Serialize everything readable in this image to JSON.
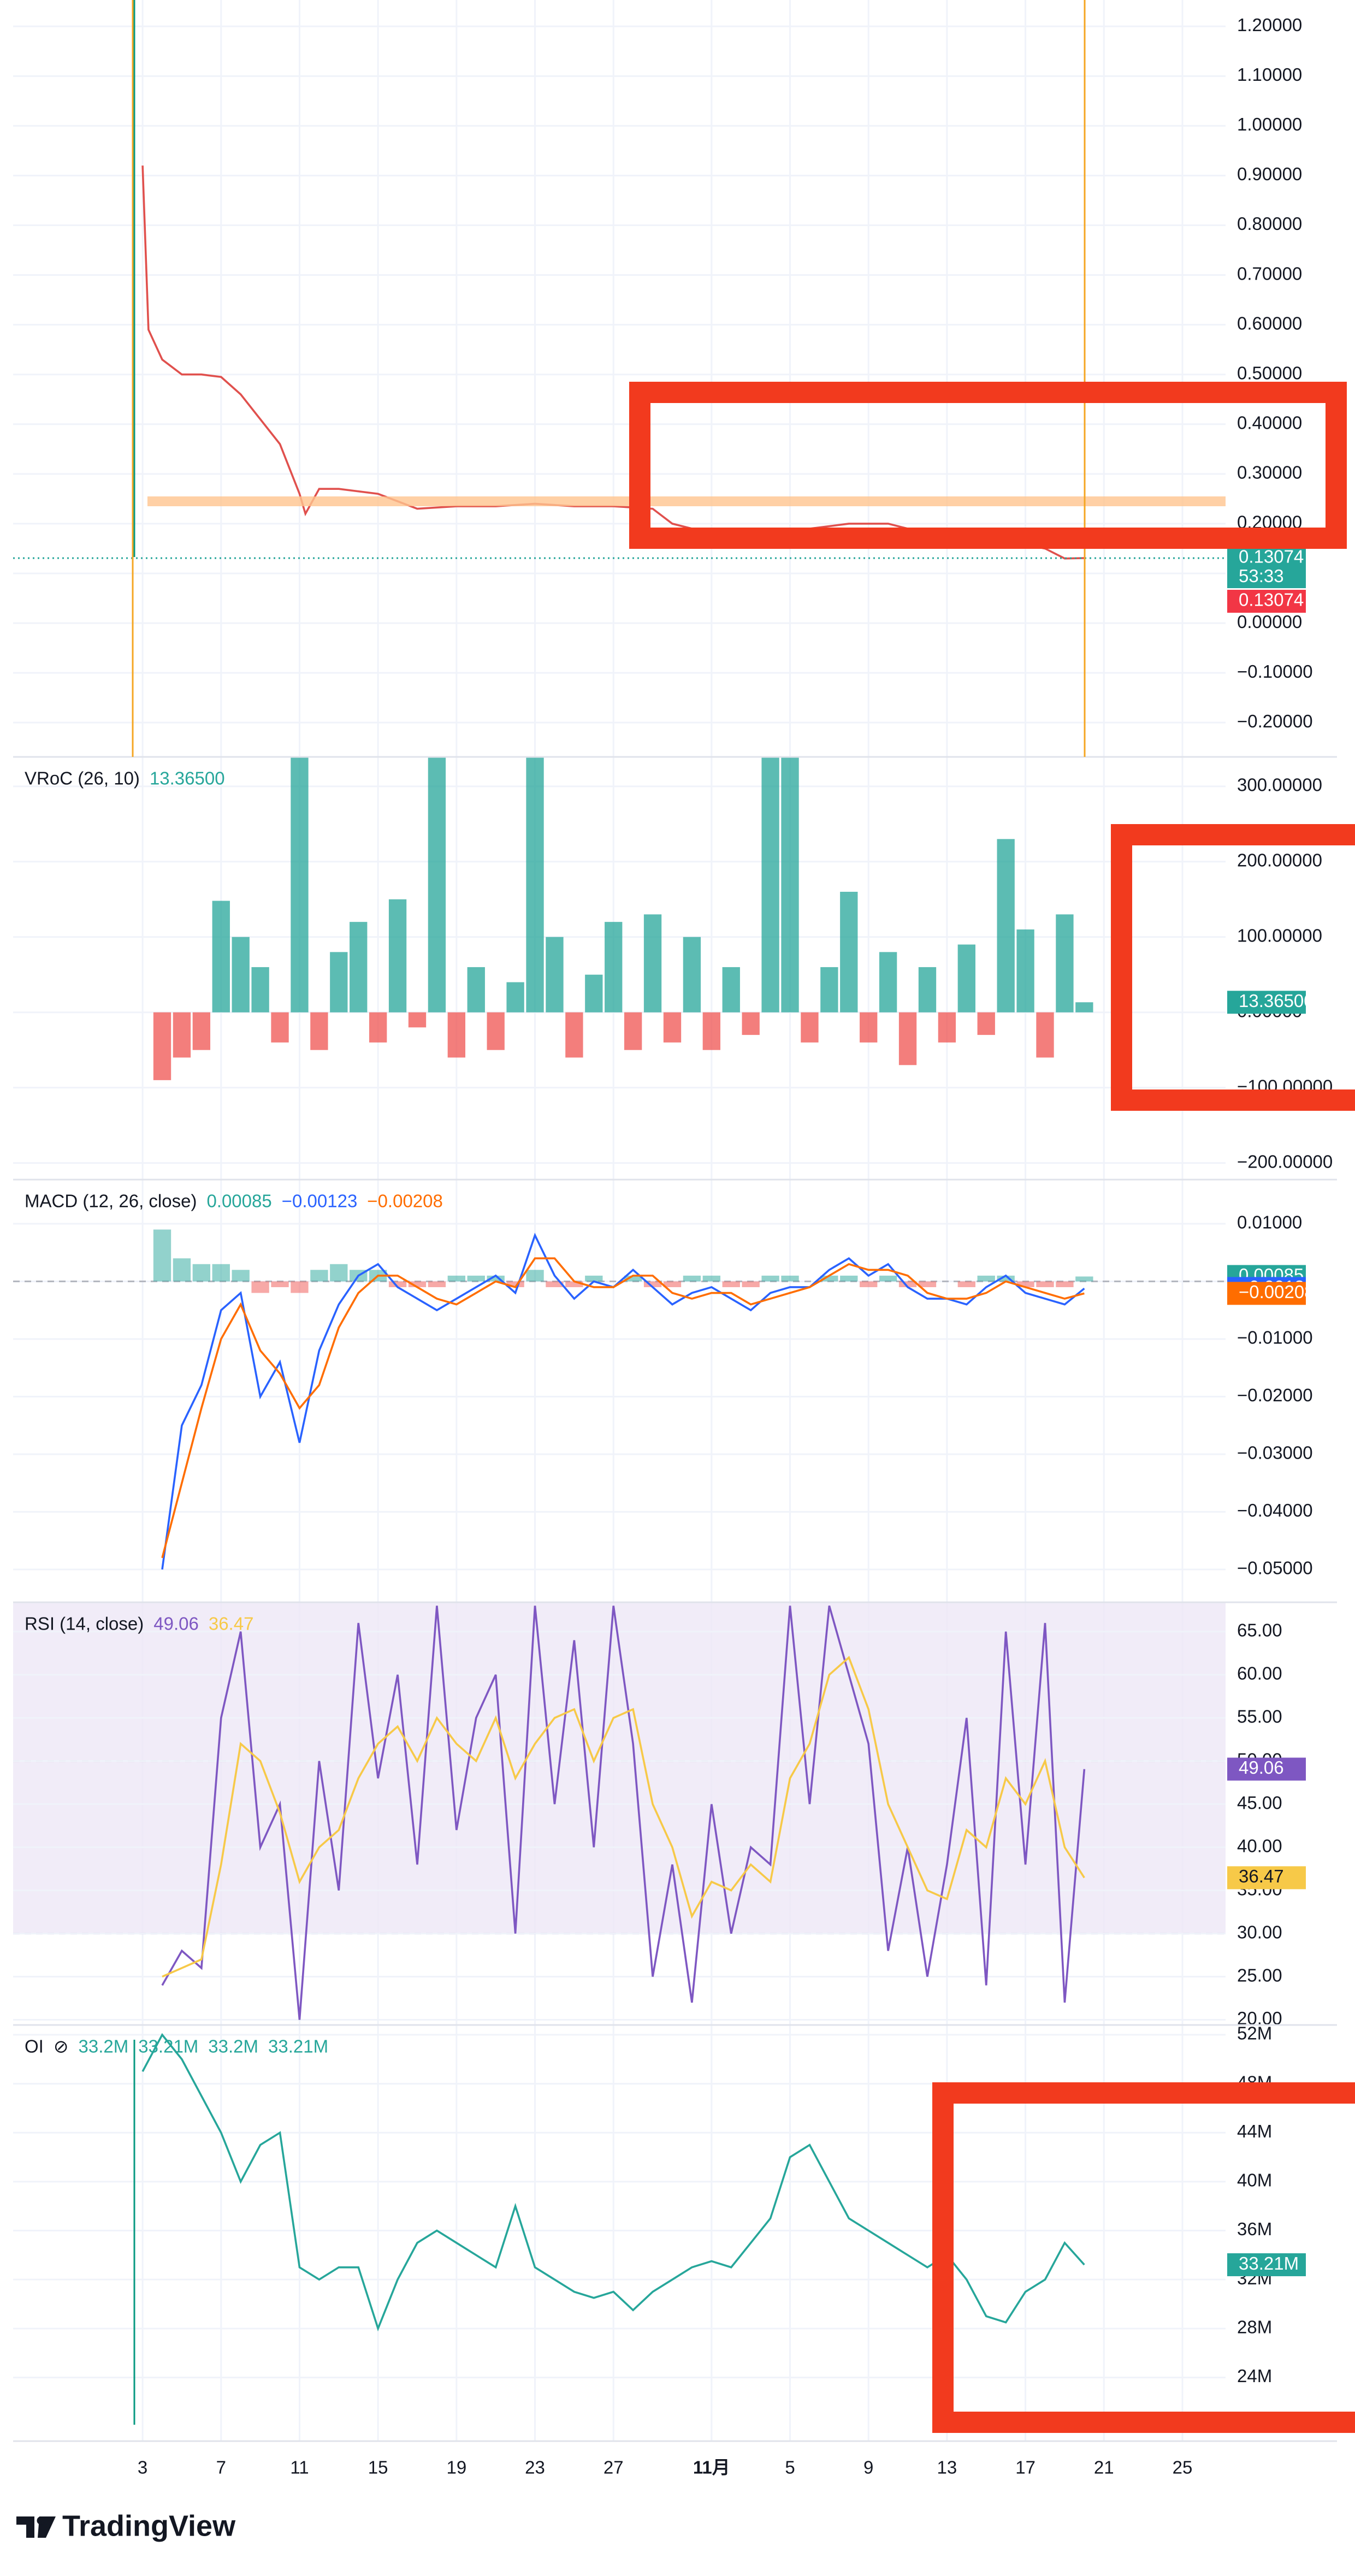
{
  "chart_data": [
    {
      "type": "line",
      "x": [
        0,
        0.3,
        1,
        2,
        3,
        4,
        5,
        6,
        7,
        8,
        8.3,
        9,
        10,
        12,
        14,
        16,
        18,
        20,
        22,
        24,
        26,
        27,
        28,
        30,
        32,
        34,
        36,
        38,
        40,
        42,
        44,
        46,
        47,
        48
      ],
      "series": [
        {
          "color": "#e0504d",
          "tag_color": "#26a69a",
          "last_label": "0.13074",
          "values": [
            0.92,
            0.59,
            0.53,
            0.5,
            0.5,
            0.495,
            0.46,
            0.41,
            0.36,
            0.26,
            0.22,
            0.27,
            0.27,
            0.26,
            0.23,
            0.235,
            0.235,
            0.24,
            0.235,
            0.235,
            0.23,
            0.2,
            0.19,
            0.19,
            0.19,
            0.19,
            0.2,
            0.2,
            0.18,
            0.165,
            0.165,
            0.15,
            0.13,
            0.13074
          ]
        }
      ],
      "last_line": true,
      "tags": [
        "53:33",
        "0.13074"
      ],
      "xlim": [
        -6.6,
        55.2
      ],
      "ylim": [
        -0.269,
        1.253
      ],
      "yticks": [
        {
          "value": 1.2,
          "label": "1.20000"
        },
        {
          "value": 1.1,
          "label": "1.10000"
        },
        {
          "value": 1,
          "label": "1.00000"
        },
        {
          "value": 0.9,
          "label": "0.90000"
        },
        {
          "value": 0.8,
          "label": "0.80000"
        },
        {
          "value": 0.7,
          "label": "0.70000"
        },
        {
          "value": 0.6,
          "label": "0.60000"
        },
        {
          "value": 0.5,
          "label": "0.50000"
        },
        {
          "value": 0.4,
          "label": "0.40000"
        },
        {
          "value": 0.3,
          "label": "0.30000"
        },
        {
          "value": 0.2,
          "label": "0.20000"
        },
        {
          "value": 0.1,
          "label": "0.10000"
        },
        {
          "value": 0,
          "label": "0.00000"
        },
        {
          "value": -0.1,
          "label": "−0.10000"
        },
        {
          "value": -0.2,
          "label": "−0.20000"
        }
      ]
    },
    {
      "type": "bar",
      "title": "VRoC (26, 10)",
      "x": [
        1,
        2,
        3,
        4,
        5,
        6,
        7,
        8,
        9,
        10,
        11,
        12,
        13,
        14,
        15,
        16,
        17,
        18,
        19,
        20,
        21,
        22,
        23,
        24,
        25,
        26,
        27,
        28,
        29,
        30,
        31,
        32,
        33,
        34,
        35,
        36,
        37,
        38,
        39,
        40,
        41,
        42,
        43,
        44,
        45,
        46,
        47,
        48
      ],
      "series": [
        {
          "color": "#26a69a",
          "negative_color": "#ef5350",
          "last_label": "13.36500",
          "values": [
            -90,
            -60,
            -50,
            148,
            100,
            60,
            -40,
            340,
            -50,
            80,
            120,
            -40,
            150,
            -20,
            340,
            -60,
            60,
            -50,
            40,
            340,
            100,
            -60,
            50,
            120,
            -50,
            130,
            -40,
            100,
            -50,
            60,
            -30,
            340,
            340,
            -40,
            60,
            160,
            -40,
            80,
            -70,
            60,
            -40,
            90,
            -30,
            230,
            110,
            -60,
            130,
            13.365
          ]
        }
      ],
      "xlim": [
        -6.6,
        55.2
      ],
      "ylim": [
        -222,
        339
      ],
      "yticks": [
        {
          "value": 300,
          "label": "300.00000"
        },
        {
          "value": 200,
          "label": "200.00000"
        },
        {
          "value": 100,
          "label": "100.00000"
        },
        {
          "value": 0,
          "label": "0.00000"
        },
        {
          "value": -100,
          "label": "−100.00000"
        },
        {
          "value": -200,
          "label": "−200.00000"
        }
      ]
    },
    {
      "type": "line",
      "title": "MACD (12, 26, close)",
      "zero_line": true,
      "x": [
        1,
        2,
        3,
        4,
        5,
        6,
        7,
        8,
        9,
        10,
        11,
        12,
        13,
        14,
        15,
        16,
        17,
        18,
        19,
        20,
        21,
        22,
        23,
        24,
        25,
        26,
        27,
        28,
        29,
        30,
        31,
        32,
        33,
        34,
        35,
        36,
        37,
        38,
        39,
        40,
        41,
        42,
        43,
        44,
        45,
        46,
        47,
        48
      ],
      "series": [
        {
          "style": "histogram",
          "color": "#26a69a",
          "negative_color": "#ef5350",
          "last_label": "0.00085",
          "values": [
            0.009,
            0.004,
            0.003,
            0.003,
            0.002,
            -0.002,
            -0.001,
            -0.002,
            0.002,
            0.003,
            0.002,
            0.002,
            -0.001,
            -0.001,
            -0.001,
            0.001,
            0.001,
            0.001,
            -0.001,
            0.002,
            -0.001,
            -0.001,
            0.001,
            0,
            0.001,
            -0.001,
            -0.001,
            0.001,
            0.001,
            -0.001,
            -0.001,
            0.001,
            0.001,
            0,
            0.001,
            0.001,
            -0.001,
            0.001,
            -0.001,
            -0.001,
            0,
            -0.001,
            0.001,
            0.001,
            -0.001,
            -0.001,
            -0.001,
            0.00085
          ]
        },
        {
          "color": "#2962ff",
          "last_label": "−0.00123",
          "values": [
            -0.05,
            -0.025,
            -0.018,
            -0.005,
            -0.002,
            -0.02,
            -0.014,
            -0.028,
            -0.012,
            -0.004,
            0.001,
            0.003,
            -0.001,
            -0.003,
            -0.005,
            -0.003,
            -0.001,
            0.001,
            -0.002,
            0.008,
            0.001,
            -0.003,
            0,
            -0.001,
            0.002,
            -0.001,
            -0.004,
            -0.002,
            -0.001,
            -0.003,
            -0.005,
            -0.002,
            -0.001,
            -0.001,
            0.002,
            0.004,
            0.001,
            0.003,
            -0.001,
            -0.003,
            -0.003,
            -0.004,
            -0.001,
            0.001,
            -0.002,
            -0.003,
            -0.004,
            -0.00123
          ]
        },
        {
          "color": "#ff6d00",
          "last_label": "−0.00208",
          "values": [
            -0.048,
            -0.035,
            -0.022,
            -0.01,
            -0.004,
            -0.012,
            -0.016,
            -0.022,
            -0.018,
            -0.008,
            -0.002,
            0.001,
            0.001,
            -0.001,
            -0.003,
            -0.004,
            -0.002,
            0,
            -0.001,
            0.004,
            0.004,
            0,
            -0.001,
            -0.001,
            0.001,
            0.001,
            -0.002,
            -0.003,
            -0.002,
            -0.002,
            -0.004,
            -0.003,
            -0.002,
            -0.001,
            0.001,
            0.003,
            0.002,
            0.002,
            0.001,
            -0.002,
            -0.003,
            -0.003,
            -0.002,
            0,
            -0.001,
            -0.002,
            -0.003,
            -0.00208
          ]
        }
      ],
      "xlim": [
        -6.6,
        55.2
      ],
      "ylim": [
        -0.0557,
        0.01767
      ],
      "yticks": [
        {
          "value": 0.01,
          "label": "0.01000"
        },
        {
          "value": 0,
          "label": "0.00000"
        },
        {
          "value": -0.01,
          "label": "−0.01000"
        },
        {
          "value": -0.02,
          "label": "−0.02000"
        },
        {
          "value": -0.03,
          "label": "−0.03000"
        },
        {
          "value": -0.04,
          "label": "−0.04000"
        },
        {
          "value": -0.05,
          "label": "−0.05000"
        }
      ]
    },
    {
      "type": "line",
      "title": "RSI (14, close)",
      "band": [
        30,
        70
      ],
      "midline": 50,
      "x": [
        1,
        2,
        3,
        4,
        5,
        6,
        7,
        8,
        9,
        10,
        11,
        12,
        13,
        14,
        15,
        16,
        17,
        18,
        19,
        20,
        21,
        22,
        23,
        24,
        25,
        26,
        27,
        28,
        29,
        30,
        31,
        32,
        33,
        34,
        35,
        36,
        37,
        38,
        39,
        40,
        41,
        42,
        43,
        44,
        45,
        46,
        47,
        48
      ],
      "series": [
        {
          "color": "#7e57c2",
          "last_label": "49.06",
          "values": [
            24,
            28,
            26,
            55,
            65,
            40,
            45,
            20,
            50,
            35,
            66,
            48,
            60,
            38,
            68,
            42,
            55,
            60,
            30,
            68,
            45,
            64,
            40,
            68,
            52,
            25,
            38,
            22,
            45,
            30,
            40,
            38,
            68,
            45,
            68,
            60,
            52,
            28,
            40,
            25,
            38,
            55,
            24,
            65,
            38,
            66,
            22,
            49.06
          ]
        },
        {
          "color": "#f7c948",
          "last_label": "36.47",
          "values": [
            25,
            26,
            27,
            38,
            52,
            50,
            44,
            36,
            40,
            42,
            48,
            52,
            54,
            50,
            55,
            52,
            50,
            55,
            48,
            52,
            55,
            56,
            50,
            55,
            56,
            45,
            40,
            32,
            36,
            35,
            38,
            36,
            48,
            52,
            60,
            62,
            56,
            45,
            40,
            35,
            34,
            42,
            40,
            48,
            45,
            50,
            40,
            36.47
          ]
        }
      ],
      "xlim": [
        -6.6,
        55.2
      ],
      "ylim": [
        19.4,
        68.4
      ],
      "yticks": [
        {
          "value": 65,
          "label": "65.00"
        },
        {
          "value": 60,
          "label": "60.00"
        },
        {
          "value": 55,
          "label": "55.00"
        },
        {
          "value": 50,
          "label": "50.00"
        },
        {
          "value": 45,
          "label": "45.00"
        },
        {
          "value": 40,
          "label": "40.00"
        },
        {
          "value": 35,
          "label": "35.00"
        },
        {
          "value": 30,
          "label": "30.00"
        },
        {
          "value": 25,
          "label": "25.00"
        },
        {
          "value": 20,
          "label": "20.00"
        }
      ]
    },
    {
      "type": "line",
      "title": "OI",
      "legend_icon": "⊘",
      "legend_values": [
        "33.2M",
        "33.21M",
        "33.2M",
        "33.21M"
      ],
      "x": [
        0,
        1,
        2,
        3,
        4,
        5,
        6,
        7,
        8,
        9,
        10,
        11,
        12,
        13,
        14,
        15,
        16,
        17,
        18,
        19,
        20,
        21,
        22,
        23,
        24,
        25,
        26,
        27,
        28,
        29,
        30,
        31,
        32,
        33,
        34,
        35,
        36,
        37,
        38,
        39,
        40,
        41,
        42,
        43,
        44,
        45,
        46,
        47,
        48
      ],
      "series": [
        {
          "color": "#26a69a",
          "last_label": "33.21M",
          "values": [
            49000000,
            52000000,
            50000000,
            47000000,
            44000000,
            40000000,
            43000000,
            44000000,
            33000000,
            32000000,
            33000000,
            33000000,
            28000000,
            32000000,
            35000000,
            36000000,
            35000000,
            34000000,
            33000000,
            38000000,
            33000000,
            32000000,
            31000000,
            30500000,
            31000000,
            29500000,
            31000000,
            32000000,
            33000000,
            33500000,
            33000000,
            35000000,
            37000000,
            42000000,
            43000000,
            40000000,
            37000000,
            36000000,
            35000000,
            34000000,
            33000000,
            34000000,
            32000000,
            29000000,
            28500000,
            31000000,
            32000000,
            35000000,
            33210000
          ]
        }
      ],
      "xlim": [
        -6.6,
        55.2
      ],
      "ylim": [
        18800000,
        52800000
      ],
      "yticks": [
        {
          "value": 52000000,
          "label": "52M"
        },
        {
          "value": 48000000,
          "label": "48M"
        },
        {
          "value": 44000000,
          "label": "44M"
        },
        {
          "value": 40000000,
          "label": "40M"
        },
        {
          "value": 36000000,
          "label": "36M"
        },
        {
          "value": 32000000,
          "label": "32M"
        },
        {
          "value": 28000000,
          "label": "28M"
        },
        {
          "value": 24000000,
          "label": "24M"
        }
      ],
      "xticks": [
        {
          "value": 0,
          "label": "3"
        },
        {
          "value": 4,
          "label": "7"
        },
        {
          "value": 8,
          "label": "11"
        },
        {
          "value": 12,
          "label": "15"
        },
        {
          "value": 16,
          "label": "19"
        },
        {
          "value": 20,
          "label": "23"
        },
        {
          "value": 24,
          "label": "27"
        },
        {
          "value": 29,
          "label": "11月"
        },
        {
          "value": 33,
          "label": "5"
        },
        {
          "value": 37,
          "label": "9"
        },
        {
          "value": 41,
          "label": "13"
        },
        {
          "value": 45,
          "label": "17"
        },
        {
          "value": 49,
          "label": "21"
        },
        {
          "value": 53,
          "label": "25"
        }
      ]
    }
  ],
  "branding": "TradingView"
}
